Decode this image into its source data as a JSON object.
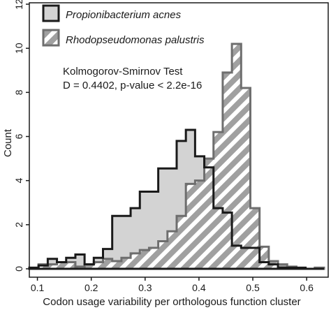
{
  "chart_data": {
    "type": "histogram",
    "xlabel": "Codon usage variability per orthologous function cluster",
    "ylabel": "Count",
    "xlim": [
      0.085,
      0.64
    ],
    "ylim": [
      0,
      12
    ],
    "x_ticks": [
      0.1,
      0.2,
      0.3,
      0.4,
      0.5,
      0.6
    ],
    "x_tick_labels": [
      "0.1",
      "0.2",
      "0.3",
      "0.4",
      "0.5",
      "0.6"
    ],
    "y_ticks": [
      0,
      2,
      4,
      6,
      8,
      10,
      12
    ],
    "y_tick_labels": [
      "0",
      "2",
      "4",
      "6",
      "8",
      "10",
      "12"
    ],
    "bin_start": 0.085,
    "bin_width": 0.0171,
    "grid": false,
    "legend_position": "top-left",
    "annotation": {
      "line1": "Kolmogorov-Smirnov Test",
      "line2": "D = 0.4402, p-value < 2.2e-16"
    },
    "series": [
      {
        "name": "Propionibacterium acnes",
        "style": "solid-grey",
        "fill": "#d3d3d3",
        "stroke": "#1a1a1a",
        "values": [
          0.05,
          0.15,
          0.45,
          0.3,
          0.5,
          0.65,
          0.2,
          0.5,
          0.9,
          2.4,
          2.4,
          2.75,
          3.5,
          3.5,
          4.55,
          4.55,
          5.8,
          6.3,
          5.1,
          4.6,
          2.75,
          2.55,
          1.05,
          0.95,
          0.95,
          0.3,
          0.2,
          0.05,
          0.05,
          0.05,
          0.0,
          0.0
        ]
      },
      {
        "name": "Rhodopseudomonas palustris",
        "style": "hatched",
        "fill": "#a0a0a0",
        "stroke": "#6e6e6e",
        "values": [
          0.0,
          0.2,
          0.2,
          0.3,
          0.3,
          0.1,
          0.2,
          0.3,
          0.45,
          0.35,
          0.5,
          0.7,
          0.85,
          0.95,
          1.25,
          1.7,
          2.4,
          3.85,
          4.0,
          5.0,
          6.2,
          8.9,
          10.2,
          8.2,
          2.75,
          1.0,
          0.35,
          0.2,
          0.1,
          0.0,
          0.0,
          0.05
        ]
      }
    ]
  }
}
